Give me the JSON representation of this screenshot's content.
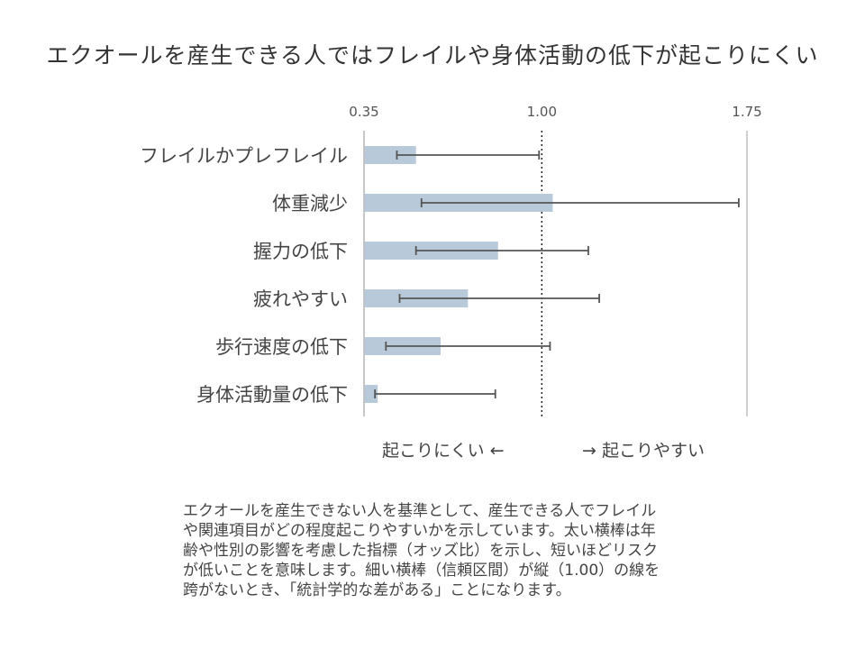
{
  "title": "エクオールを産生できる人ではフレイルや身体活動の低下が起こりにくい",
  "chart_data": {
    "type": "bar",
    "orientation": "horizontal",
    "categories": [
      "フレイルかプレフレイル",
      "体重減少",
      "握力の低下",
      "疲れやすい",
      "歩行速度の低下",
      "身体活動量の低下"
    ],
    "values": [
      0.54,
      1.04,
      0.84,
      0.73,
      0.63,
      0.4
    ],
    "ci_lower": [
      0.47,
      0.56,
      0.54,
      0.48,
      0.43,
      0.39
    ],
    "ci_upper": [
      0.99,
      1.72,
      1.17,
      1.21,
      1.03,
      0.83
    ],
    "reference_line": 1.0,
    "xlim": [
      0.35,
      1.75
    ],
    "ticks": [
      "0.35",
      "1.00",
      "1.75"
    ],
    "left_caption": "起こりにくい ←",
    "right_caption": "→ 起こりやすい",
    "bar_color": "#b8cada",
    "errorbar_color": "#555555",
    "grid": true
  },
  "note_lines": [
    "エクオールを産生できない人を基準として、産生できる人でフレイル",
    "や関連項目がどの程度起こりやすいかを示しています。太い横棒は年",
    "齢や性別の影響を考慮した指標（オッズ比）を示し、短いほどリスク",
    "が低いことを意味します。細い横棒（信頼区間）が縦（1.00）の線を",
    "跨がないとき、「統計学的な差がある」ことになります。"
  ]
}
